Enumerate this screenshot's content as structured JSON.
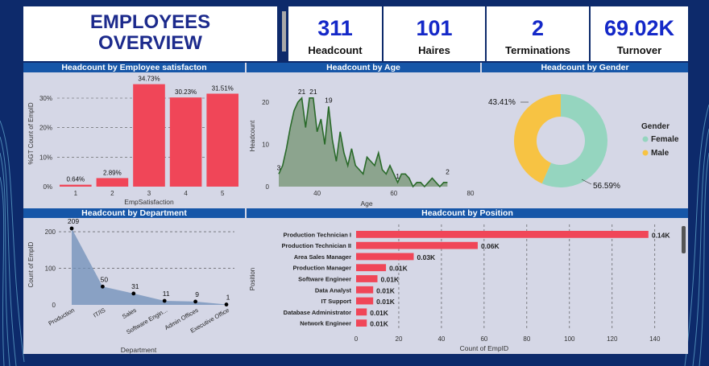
{
  "title_line1": "EMPLOYEES",
  "title_line2": "OVERVIEW",
  "kpis": [
    {
      "value": "311",
      "label": "Headcount"
    },
    {
      "value": "101",
      "label": "Haires"
    },
    {
      "value": "2",
      "label": "Terminations"
    },
    {
      "value": "69.02K",
      "label": "Turnover"
    }
  ],
  "colors": {
    "bar": "#f04658",
    "area": "#7f9b7e",
    "line": "#2a6a2a",
    "female": "#95d5bf",
    "male": "#f7c343",
    "dept": "#0d4a86",
    "header": "#1656a8"
  },
  "chart_data": [
    {
      "type": "bar",
      "title": "Headcount by Employee satisfacton",
      "xlabel": "EmpSatisfaction",
      "ylabel": "%GT Count of EmpID",
      "categories": [
        "1",
        "2",
        "3",
        "4",
        "5"
      ],
      "values": [
        0.64,
        2.89,
        34.73,
        30.23,
        31.51
      ],
      "data_labels": [
        "0.64%",
        "2.89%",
        "34.73%",
        "30.23%",
        "31.51%"
      ],
      "yticks": [
        "0%",
        "10%",
        "20%",
        "30%"
      ],
      "ylim": [
        0,
        36
      ]
    },
    {
      "type": "area",
      "title": "Headcount by Age",
      "xlabel": "Age",
      "ylabel": "Headcount",
      "x": [
        30,
        31,
        32,
        33,
        34,
        35,
        36,
        37,
        38,
        39,
        40,
        41,
        42,
        43,
        44,
        45,
        46,
        47,
        48,
        49,
        50,
        51,
        52,
        53,
        54,
        55,
        56,
        57,
        58,
        59,
        60,
        61,
        62,
        63,
        64,
        65,
        66,
        67,
        68,
        69,
        70,
        71,
        72,
        73,
        74,
        75,
        76,
        77,
        78,
        79,
        80
      ],
      "values": [
        3,
        5,
        9,
        14,
        18,
        20,
        21,
        14,
        21,
        21,
        13,
        16,
        10,
        19,
        11,
        6,
        13,
        8,
        5,
        9,
        5,
        4,
        3,
        7,
        6,
        5,
        8,
        4,
        3,
        5,
        3,
        1,
        3,
        3,
        2,
        0,
        1,
        1,
        0,
        1,
        2,
        1,
        0,
        1,
        1,
        1,
        0,
        1,
        2,
        1,
        2
      ],
      "data_labels": [
        {
          "x": 30,
          "text": "3"
        },
        {
          "x": 36,
          "text": "21"
        },
        {
          "x": 39,
          "text": "21"
        },
        {
          "x": 43,
          "text": "19"
        },
        {
          "x": 61,
          "text": "1"
        },
        {
          "x": 80,
          "text": "2"
        }
      ],
      "xticks": [
        "40",
        "60",
        "80"
      ],
      "yticks": [
        "0",
        "10",
        "20"
      ],
      "xlim": [
        30,
        80
      ],
      "ylim": [
        0,
        24
      ]
    },
    {
      "type": "pie",
      "title": "Headcount by Gender",
      "legend_title": "Gender",
      "slices": [
        {
          "name": "Female",
          "value": 56.59,
          "label": "56.59%"
        },
        {
          "name": "Male",
          "value": 43.41,
          "label": "43.41%"
        }
      ]
    },
    {
      "type": "area",
      "title": "Headcount by Department",
      "xlabel": "Department",
      "ylabel": "Count of EmpID",
      "categories": [
        "Production",
        "IT/IS",
        "Sales",
        "Software Engin...",
        "Admin Offices",
        "Executive Office"
      ],
      "values": [
        209,
        50,
        31,
        11,
        9,
        1
      ],
      "yticks": [
        "0",
        "100",
        "200"
      ],
      "ylim": [
        0,
        220
      ]
    },
    {
      "type": "bar",
      "orientation": "horizontal",
      "title": "Headcount by Position",
      "xlabel": "Count of EmpID",
      "ylabel": "Position",
      "categories": [
        "Production Technician I",
        "Production Technician II",
        "Area Sales Manager",
        "Production Manager",
        "Software Engineer",
        "Data Analyst",
        "IT Support",
        "Database Administrator",
        "Network Engineer"
      ],
      "values": [
        137,
        57,
        27,
        14,
        10,
        8,
        8,
        5,
        5
      ],
      "data_labels": [
        "0.14K",
        "0.06K",
        "0.03K",
        "0.01K",
        "0.01K",
        "0.01K",
        "0.01K",
        "0.01K",
        "0.01K"
      ],
      "xticks": [
        "0",
        "20",
        "40",
        "60",
        "80",
        "100",
        "120",
        "140"
      ],
      "xlim": [
        0,
        145
      ]
    }
  ]
}
